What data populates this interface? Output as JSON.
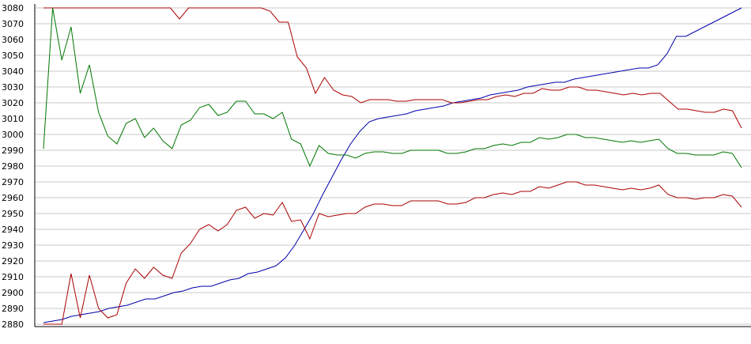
{
  "chart_data": {
    "type": "line",
    "title": "",
    "xlabel": "",
    "ylabel": "",
    "ylim": [
      2880,
      3080
    ],
    "yticks": [
      2880,
      2890,
      2900,
      2910,
      2920,
      2930,
      2940,
      2950,
      2960,
      2970,
      2980,
      2990,
      3000,
      3010,
      3020,
      3030,
      3040,
      3050,
      3060,
      3070,
      3080
    ],
    "grid": true,
    "legend": "none",
    "x_count": 82,
    "series": [
      {
        "color": "#0000aa",
        "values": [
          2881,
          2882,
          2883,
          2885,
          2886,
          2887,
          2888,
          2890,
          2891,
          2892,
          2894,
          2896,
          2896,
          2898,
          2900,
          2901,
          2903,
          2904,
          2904,
          2906,
          2908,
          2909,
          2912,
          2913,
          2915,
          2917,
          2922,
          2930,
          2940,
          2950,
          2962,
          2973,
          2984,
          2994,
          3002,
          3008,
          3010,
          3011,
          3012,
          3013,
          3015,
          3016,
          3017,
          3018,
          3020,
          3021,
          3022,
          3023,
          3025,
          3026,
          3027,
          3028,
          3030,
          3031,
          3032,
          3033,
          3033,
          3035,
          3036,
          3037,
          3038,
          3039,
          3040,
          3041,
          3042,
          3042,
          3044,
          3051,
          3062,
          3062,
          3065,
          3068,
          3071,
          3074,
          3077,
          3080
        ]
      },
      {
        "color": "#aa0000",
        "values": [
          3080,
          3080,
          3080,
          3080,
          3080,
          3080,
          3080,
          3080,
          3080,
          3080,
          3080,
          3080,
          3080,
          3080,
          3080,
          3073,
          3080,
          3080,
          3080,
          3080,
          3080,
          3080,
          3080,
          3080,
          3080,
          3078,
          3071,
          3071,
          3049,
          3042,
          3026,
          3036,
          3028,
          3025,
          3024,
          3020,
          3022,
          3022,
          3022,
          3021,
          3021,
          3022,
          3022,
          3022,
          3022,
          3020,
          3020,
          3021,
          3022,
          3022,
          3024,
          3025,
          3024,
          3026,
          3026,
          3029,
          3028,
          3028,
          3030,
          3030,
          3028,
          3028,
          3027,
          3026,
          3025,
          3026,
          3025,
          3026,
          3026,
          3021,
          3016,
          3016,
          3015,
          3014,
          3014,
          3016,
          3015,
          3004
        ]
      },
      {
        "color": "#007700",
        "values": [
          2991,
          3080,
          3047,
          3068,
          3026,
          3044,
          3014,
          2999,
          2994,
          3007,
          3010,
          2998,
          3004,
          2996,
          2991,
          3006,
          3009,
          3017,
          3019,
          3012,
          3014,
          3021,
          3021,
          3013,
          3013,
          3010,
          3014,
          2997,
          2994,
          2980,
          2993,
          2988,
          2987,
          2987,
          2985,
          2988,
          2989,
          2989,
          2988,
          2988,
          2990,
          2990,
          2990,
          2990,
          2988,
          2988,
          2989,
          2991,
          2991,
          2993,
          2994,
          2993,
          2995,
          2995,
          2998,
          2997,
          2998,
          3000,
          3000,
          2998,
          2998,
          2997,
          2996,
          2995,
          2996,
          2995,
          2996,
          2997,
          2991,
          2988,
          2988,
          2987,
          2987,
          2987,
          2989,
          2988,
          2979
        ]
      },
      {
        "color": "#aa0000",
        "values": [
          2880,
          2880,
          2880,
          2912,
          2884,
          2911,
          2890,
          2884,
          2886,
          2906,
          2915,
          2909,
          2916,
          2911,
          2909,
          2925,
          2931,
          2940,
          2943,
          2939,
          2943,
          2952,
          2954,
          2947,
          2950,
          2949,
          2957,
          2945,
          2946,
          2934,
          2950,
          2948,
          2949,
          2950,
          2950,
          2954,
          2956,
          2956,
          2955,
          2955,
          2958,
          2958,
          2958,
          2958,
          2956,
          2956,
          2957,
          2960,
          2960,
          2962,
          2963,
          2962,
          2964,
          2964,
          2967,
          2966,
          2968,
          2970,
          2970,
          2968,
          2968,
          2967,
          2966,
          2965,
          2966,
          2965,
          2966,
          2968,
          2962,
          2960,
          2960,
          2959,
          2960,
          2960,
          2962,
          2961,
          2954
        ]
      }
    ]
  }
}
